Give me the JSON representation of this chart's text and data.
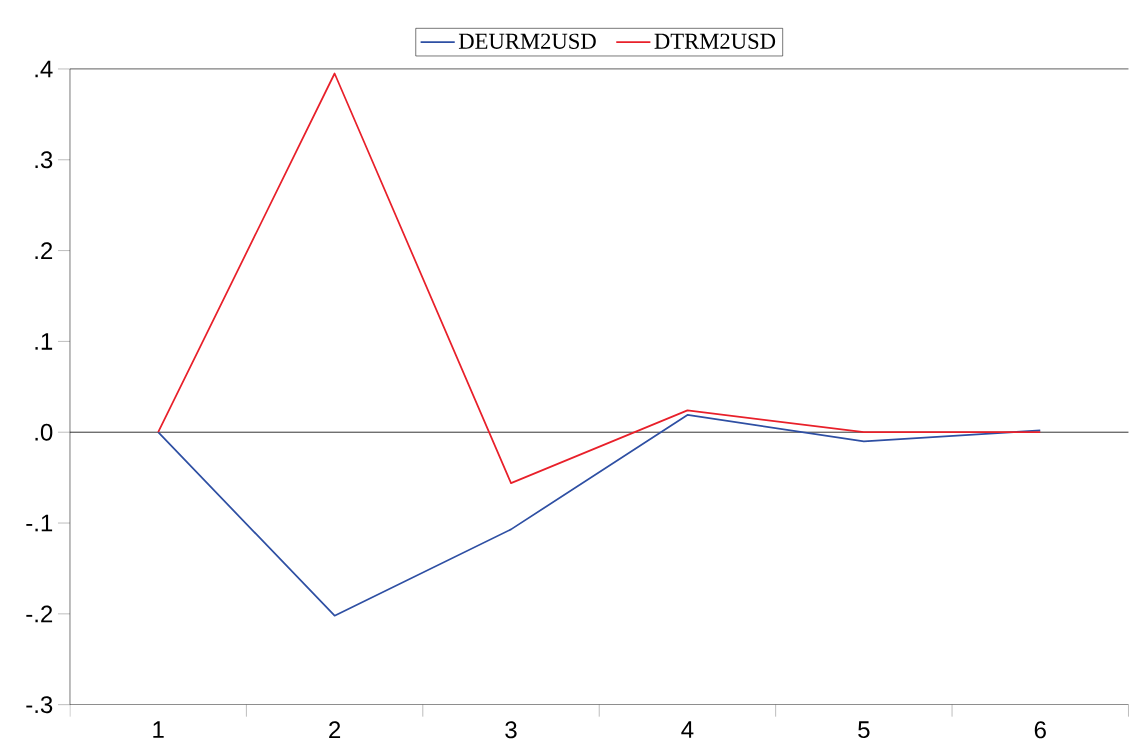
{
  "chart_data": {
    "type": "line",
    "categories": [
      "1",
      "2",
      "3",
      "4",
      "5",
      "6"
    ],
    "series": [
      {
        "name": "DEURM2USD",
        "color": "#2e4fa3",
        "values": [
          0,
          -0.202,
          -0.107,
          0.019,
          -0.01,
          0.002
        ]
      },
      {
        "name": "DTRM2USD",
        "color": "#e8202a",
        "values": [
          0,
          0.395,
          -0.056,
          0.024,
          0,
          0
        ]
      }
    ],
    "ylim": [
      -0.3,
      0.4
    ],
    "yticks": [
      {
        "value": -0.3,
        "label": "-.3"
      },
      {
        "value": -0.2,
        "label": "-.2"
      },
      {
        "value": -0.1,
        "label": "-.1"
      },
      {
        "value": 0,
        "label": ".0"
      },
      {
        "value": 0.1,
        "label": ".1"
      },
      {
        "value": 0.2,
        "label": ".2"
      },
      {
        "value": 0.3,
        "label": ".3"
      },
      {
        "value": 0.4,
        "label": ".4"
      }
    ],
    "ref_lines": [
      {
        "axis": "y",
        "value": 0,
        "color": "#000000"
      }
    ],
    "legend": "top"
  }
}
